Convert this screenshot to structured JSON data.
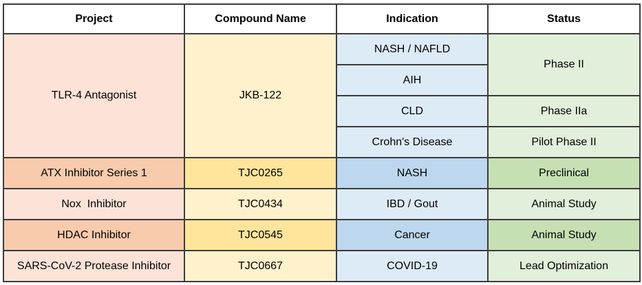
{
  "table": {
    "headers": {
      "project": "Project",
      "compound": "Compound Name",
      "indication": "Indication",
      "status": "Status"
    },
    "tlr4": {
      "project": "TLR-4 Antagonist",
      "compound": "JKB-122",
      "indications": [
        "NASH / NAFLD",
        "AIH",
        "CLD",
        "Crohn's Disease"
      ],
      "statuses": [
        "Phase II",
        "Phase IIa",
        "Pilot Phase II"
      ]
    },
    "rows": [
      {
        "project": "ATX Inhibitor Series 1",
        "compound": "TJC0265",
        "indication": "NASH",
        "status": "Preclinical"
      },
      {
        "project": "Nox  Inhibitor",
        "compound": "TJC0434",
        "indication": "IBD / Gout",
        "status": "Animal Study"
      },
      {
        "project": "HDAC Inhibitor",
        "compound": "TJC0545",
        "indication": "Cancer",
        "status": "Animal Study"
      },
      {
        "project": "SARS-CoV-2 Protease Inhibitor",
        "compound": "TJC0667",
        "indication": "COVID-19",
        "status": "Lead Optimization"
      }
    ]
  },
  "colors": {
    "project_light": "#fde3d7",
    "project_dark": "#f8cbad",
    "compound_light": "#fff1cc",
    "compound_dark": "#ffe49c",
    "indication_light": "#ddebf7",
    "indication_dark": "#bdd7ee",
    "status_light": "#e2efda",
    "status_dark": "#c6e0b4",
    "border": "#3c3c3c"
  }
}
